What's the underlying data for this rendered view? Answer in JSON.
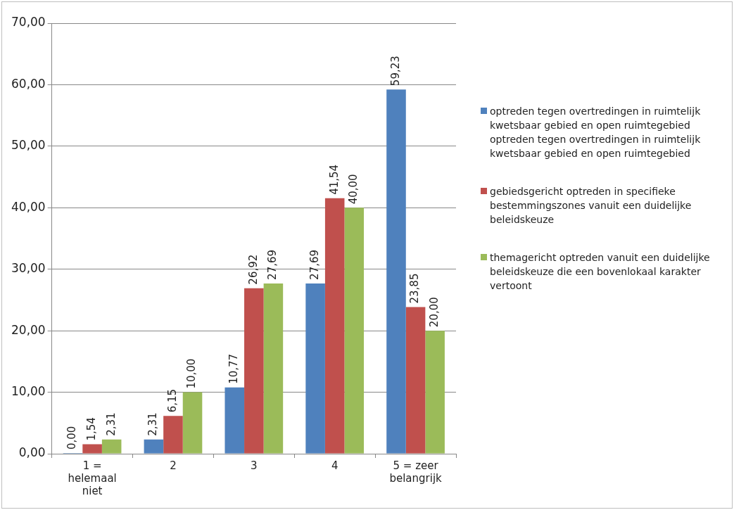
{
  "chart_data": {
    "type": "bar",
    "categories": [
      "1 = helemaal niet",
      "2",
      "3",
      "4",
      "5 = zeer belangrijk"
    ],
    "series": [
      {
        "name": "optreden tegen overtredingen in ruimtelijk kwetsbaar gebied en open ruimtegebied optreden tegen overtredingen in ruimtelijk kwetsbaar gebied en open ruimtegebied",
        "color": "#4f81bd",
        "values": [
          0,
          2.31,
          10.77,
          27.69,
          59.23
        ],
        "value_labels": [
          "0,00",
          "2,31",
          "10,77",
          "27,69",
          "59,23"
        ]
      },
      {
        "name": "gebiedsgericht optreden in specifieke bestemmingszones vanuit een duidelijke beleidskeuze",
        "color": "#c0504d",
        "values": [
          1.54,
          6.15,
          26.92,
          41.54,
          23.85
        ],
        "value_labels": [
          "1,54",
          "6,15",
          "26,92",
          "41,54",
          "23,85"
        ]
      },
      {
        "name": "themagericht optreden vanuit een duidelijke beleidskeuze die een bovenlokaal karakter vertoont",
        "color": "#9bbb59",
        "values": [
          2.31,
          10,
          27.69,
          40,
          20
        ],
        "value_labels": [
          "2,31",
          "10,00",
          "27,69",
          "40,00",
          "20,00"
        ]
      }
    ],
    "ylim": [
      0,
      70
    ],
    "yticks": [
      {
        "value": 0,
        "label": "0,00"
      },
      {
        "value": 10,
        "label": "10,00"
      },
      {
        "value": 20,
        "label": "20,00"
      },
      {
        "value": 30,
        "label": "30,00"
      },
      {
        "value": 40,
        "label": "40,00"
      },
      {
        "value": 50,
        "label": "50,00"
      },
      {
        "value": 60,
        "label": "60,00"
      },
      {
        "value": 70,
        "label": "70,00"
      }
    ],
    "grid": "y",
    "legend": "right"
  }
}
